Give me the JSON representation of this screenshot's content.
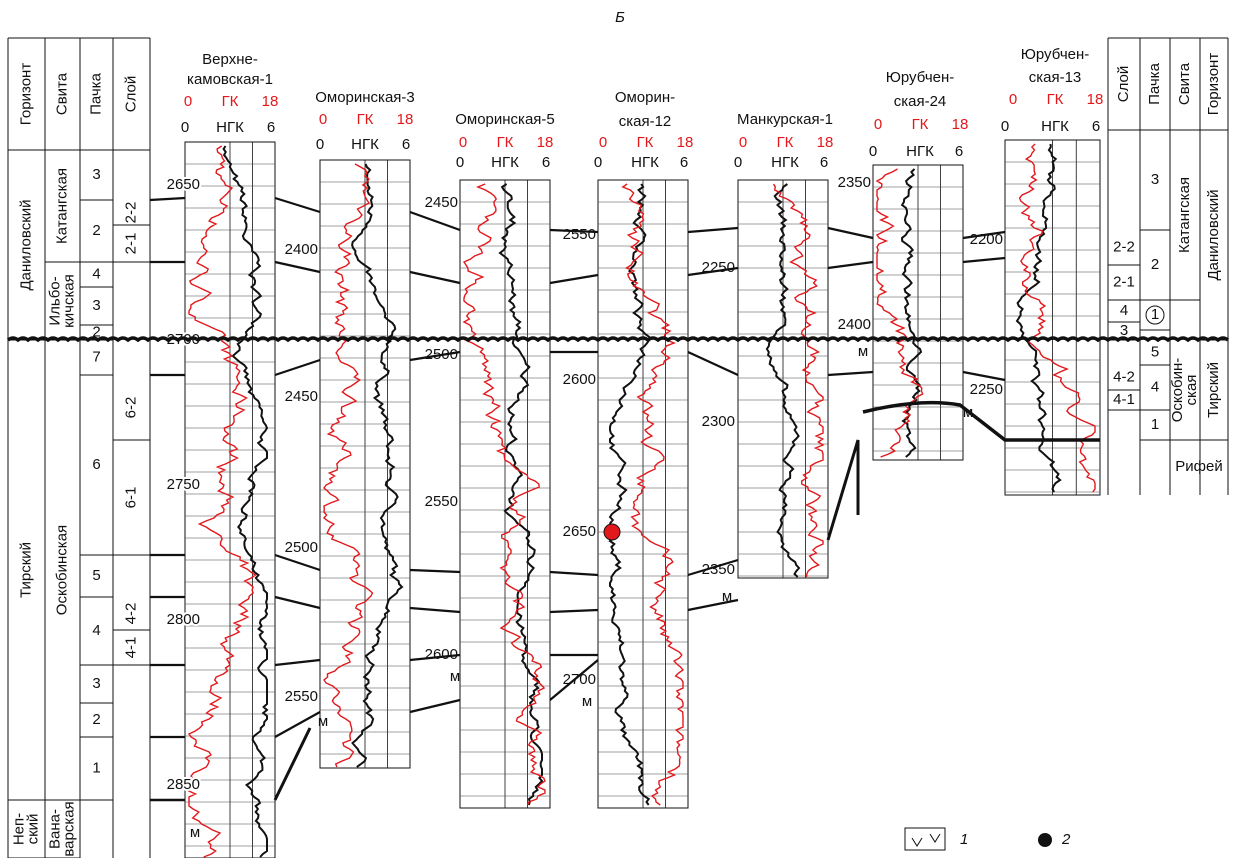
{
  "title": "Б",
  "left_columns": {
    "headers": [
      "Горизонт",
      "Свита",
      "Пачка",
      "Слой"
    ],
    "horizons": [
      "Даниловский",
      "Тирский",
      [
        "Неп-",
        "ский"
      ]
    ],
    "svitas": [
      "Катангская",
      [
        "Ильбо-",
        "кичская"
      ],
      "Оскобинская",
      [
        "Вана-",
        "варская"
      ]
    ],
    "pachkas": [
      "3",
      "2",
      "4",
      "3",
      "2",
      "7",
      "6",
      "5",
      "4",
      "3",
      "2",
      "1"
    ],
    "sloi": [
      "2-2",
      "2-1",
      "6-2",
      "6-1",
      "4-2",
      "4-1"
    ]
  },
  "right_columns": {
    "headers": [
      "Слой",
      "Пачка",
      "Свита",
      "Горизонт"
    ],
    "horizons": [
      "Даниловский",
      "Тирский",
      "Рифей"
    ],
    "svitas": [
      "Катангская",
      [
        "Оскобин-",
        "ская"
      ]
    ],
    "pachkas": [
      "3",
      "2",
      "1",
      "5",
      "4",
      "1"
    ],
    "sloi": [
      "2-2",
      "2-1",
      "4",
      "3",
      "4-2",
      "4-1"
    ]
  },
  "log_header": {
    "gk": "ГК",
    "gk_min": 0,
    "gk_max": 18,
    "ngk": "НГК",
    "ngk_min": 0,
    "ngk_max": 6
  },
  "wells": [
    {
      "name": [
        "Верхне-",
        "камовская-1"
      ],
      "depths": [
        2650,
        2700,
        2750,
        2800,
        2850
      ]
    },
    {
      "name": [
        "Оморинская-3"
      ],
      "depths": [
        2400,
        2450,
        2500,
        2550
      ]
    },
    {
      "name": [
        "Оморинская-5"
      ],
      "depths": [
        2450,
        2500,
        2550,
        2600
      ]
    },
    {
      "name": [
        "Оморин-",
        "ская-12"
      ],
      "depths": [
        2550,
        2600,
        2650,
        2700
      ]
    },
    {
      "name": [
        "Манкурская-1"
      ],
      "depths": [
        2250,
        2300,
        2350
      ]
    },
    {
      "name": [
        "Юрубчен-",
        "ская-24"
      ],
      "depths": [
        2350,
        2400
      ]
    },
    {
      "name": [
        "Юрубчен-",
        "ская-13"
      ],
      "depths": [
        2200,
        2250
      ]
    }
  ],
  "erosion_mark": "м",
  "legend": [
    "1",
    "2"
  ]
}
